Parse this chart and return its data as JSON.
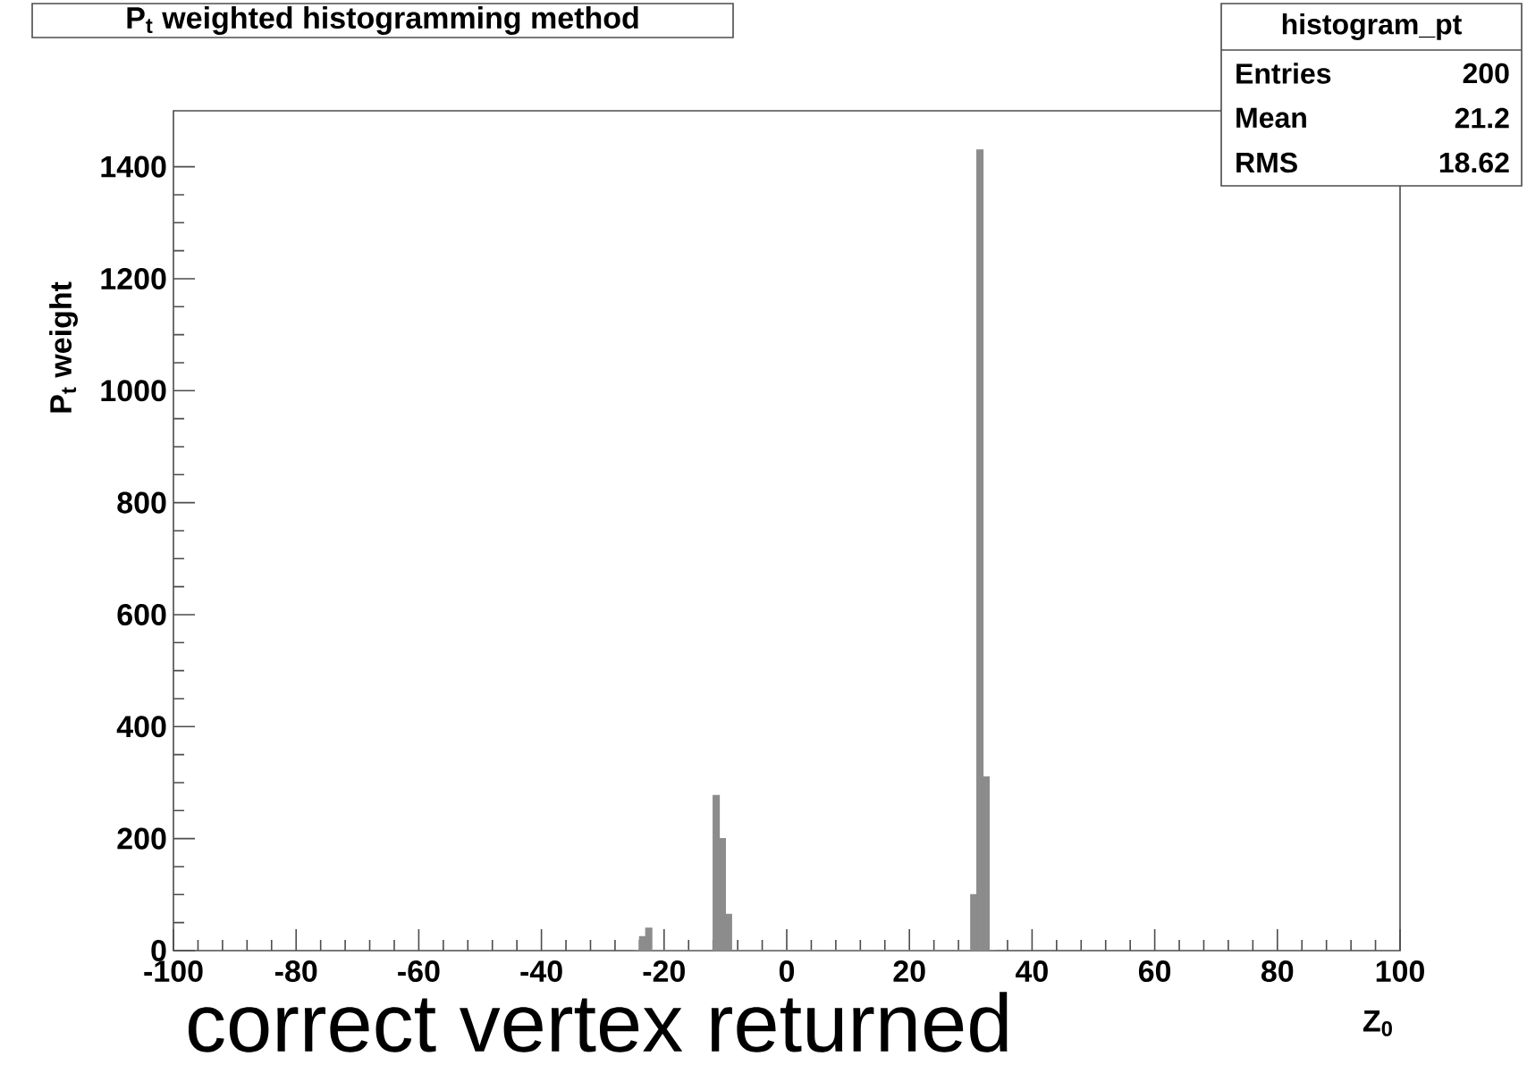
{
  "chart_data": {
    "type": "histogram",
    "title": "P$_{t}$ weighted histogramming method",
    "xlabel": "Z$_{0}$",
    "ylabel": "P$_{t}$ weight",
    "annotations": [
      "histogram_pt",
      "Entries",
      "200",
      "Mean",
      "21.2",
      "RMS",
      "18.62",
      "correct vertex returned"
    ],
    "bins": [
      -25,
      -24,
      -23,
      -22,
      -21,
      -20,
      -19,
      -18,
      -17,
      -16,
      -15,
      -14,
      -13,
      -12,
      -11,
      -10,
      -9,
      -8,
      -7,
      -6,
      -5,
      -4,
      -3,
      -2,
      -1,
      0,
      1,
      2,
      3,
      4,
      5,
      6,
      7,
      8,
      9,
      10,
      11,
      12,
      13,
      14,
      15,
      16,
      17,
      18,
      19,
      20,
      21,
      22,
      23,
      24,
      25,
      26,
      27,
      28,
      29,
      30,
      31,
      32,
      33,
      34
    ],
    "values": [
      0,
      25,
      40,
      0,
      0,
      0,
      0,
      0,
      0,
      0,
      0,
      0,
      0,
      277,
      200,
      65,
      0,
      0,
      0,
      0,
      0,
      0,
      0,
      0,
      0,
      0,
      0,
      0,
      0,
      0,
      0,
      0,
      0,
      0,
      0,
      0,
      0,
      0,
      0,
      0,
      0,
      0,
      0,
      0,
      0,
      0,
      0,
      0,
      0,
      0,
      0,
      0,
      0,
      0,
      0,
      100,
      1430,
      310,
      0
    ],
    "color": "#8c8c8c",
    "xlim": [
      -100,
      100
    ],
    "ylim": [
      0,
      1500
    ],
    "xticks": [
      -100,
      -80,
      -60,
      -40,
      -20,
      0,
      20,
      40,
      60,
      80,
      100
    ],
    "yticks": [
      0,
      200,
      400,
      600,
      800,
      1000,
      1200,
      1400
    ]
  }
}
